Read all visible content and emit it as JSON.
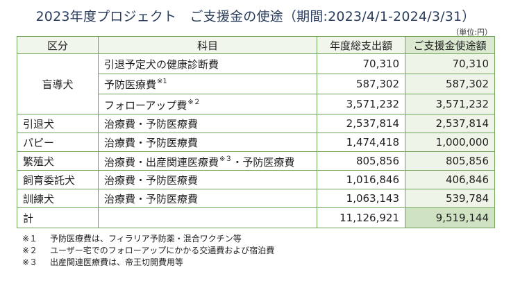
{
  "title": "2023年度プロジェクト　ご支援金の使途（期間:2023/4/1-2024/3/31）",
  "unit": "（単位:円）",
  "table": {
    "headers": [
      "区分",
      "科目",
      "年度総支出額",
      "ご支援金使途額"
    ],
    "rows": [
      {
        "category": "盲導犬",
        "item": "引退予定犬の健康診断費",
        "note": "",
        "item_suffix": "",
        "total": "70,310",
        "support": "70,310"
      },
      {
        "category": "",
        "item": "予防医療費",
        "note": "※1",
        "item_suffix": "",
        "total": "587,302",
        "support": "587,302"
      },
      {
        "category": "",
        "item": "フォローアップ費",
        "note": "※２",
        "item_suffix": "",
        "total": "3,571,232",
        "support": "3,571,232"
      },
      {
        "category": "引退犬",
        "item": "治療費・予防医療費",
        "note": "",
        "item_suffix": "",
        "total": "2,537,814",
        "support": "2,537,814"
      },
      {
        "category": "パピー",
        "item": "治療費・予防医療費",
        "note": "",
        "item_suffix": "",
        "total": "1,474,418",
        "support": "1,000,000"
      },
      {
        "category": "繁殖犬",
        "item": "治療費・出産関連医療費",
        "note": "※３",
        "item_suffix": "・予防医療費",
        "total": "805,856",
        "support": "805,856"
      },
      {
        "category": "飼育委託犬",
        "item": "治療費・予防医療費",
        "note": "",
        "item_suffix": "",
        "total": "1,016,846",
        "support": "406,846"
      },
      {
        "category": "訓練犬",
        "item": "治療費・予防医療費",
        "note": "",
        "item_suffix": "",
        "total": "1,063,143",
        "support": "539,784"
      }
    ],
    "total_label": "計",
    "total_sum": "11,126,921",
    "total_support": "9,519,144"
  },
  "notes": [
    {
      "mark": "※１",
      "text": "予防医療費は、フィラリア予防薬・混合ワクチン等"
    },
    {
      "mark": "※２",
      "text": "ユーザー宅でのフォローアップにかかる交通費および宿泊費"
    },
    {
      "mark": "※３",
      "text": "出産関連医療費は、帝王切開費用等"
    }
  ],
  "colors": {
    "title": "#2a3d5c",
    "border": "#6fa35a",
    "header_fill": "#f0f6ec",
    "highlight_header": "#dbe9d0",
    "highlight_cell": "#eef5e8",
    "total_highlight": "#cfe2c2"
  }
}
